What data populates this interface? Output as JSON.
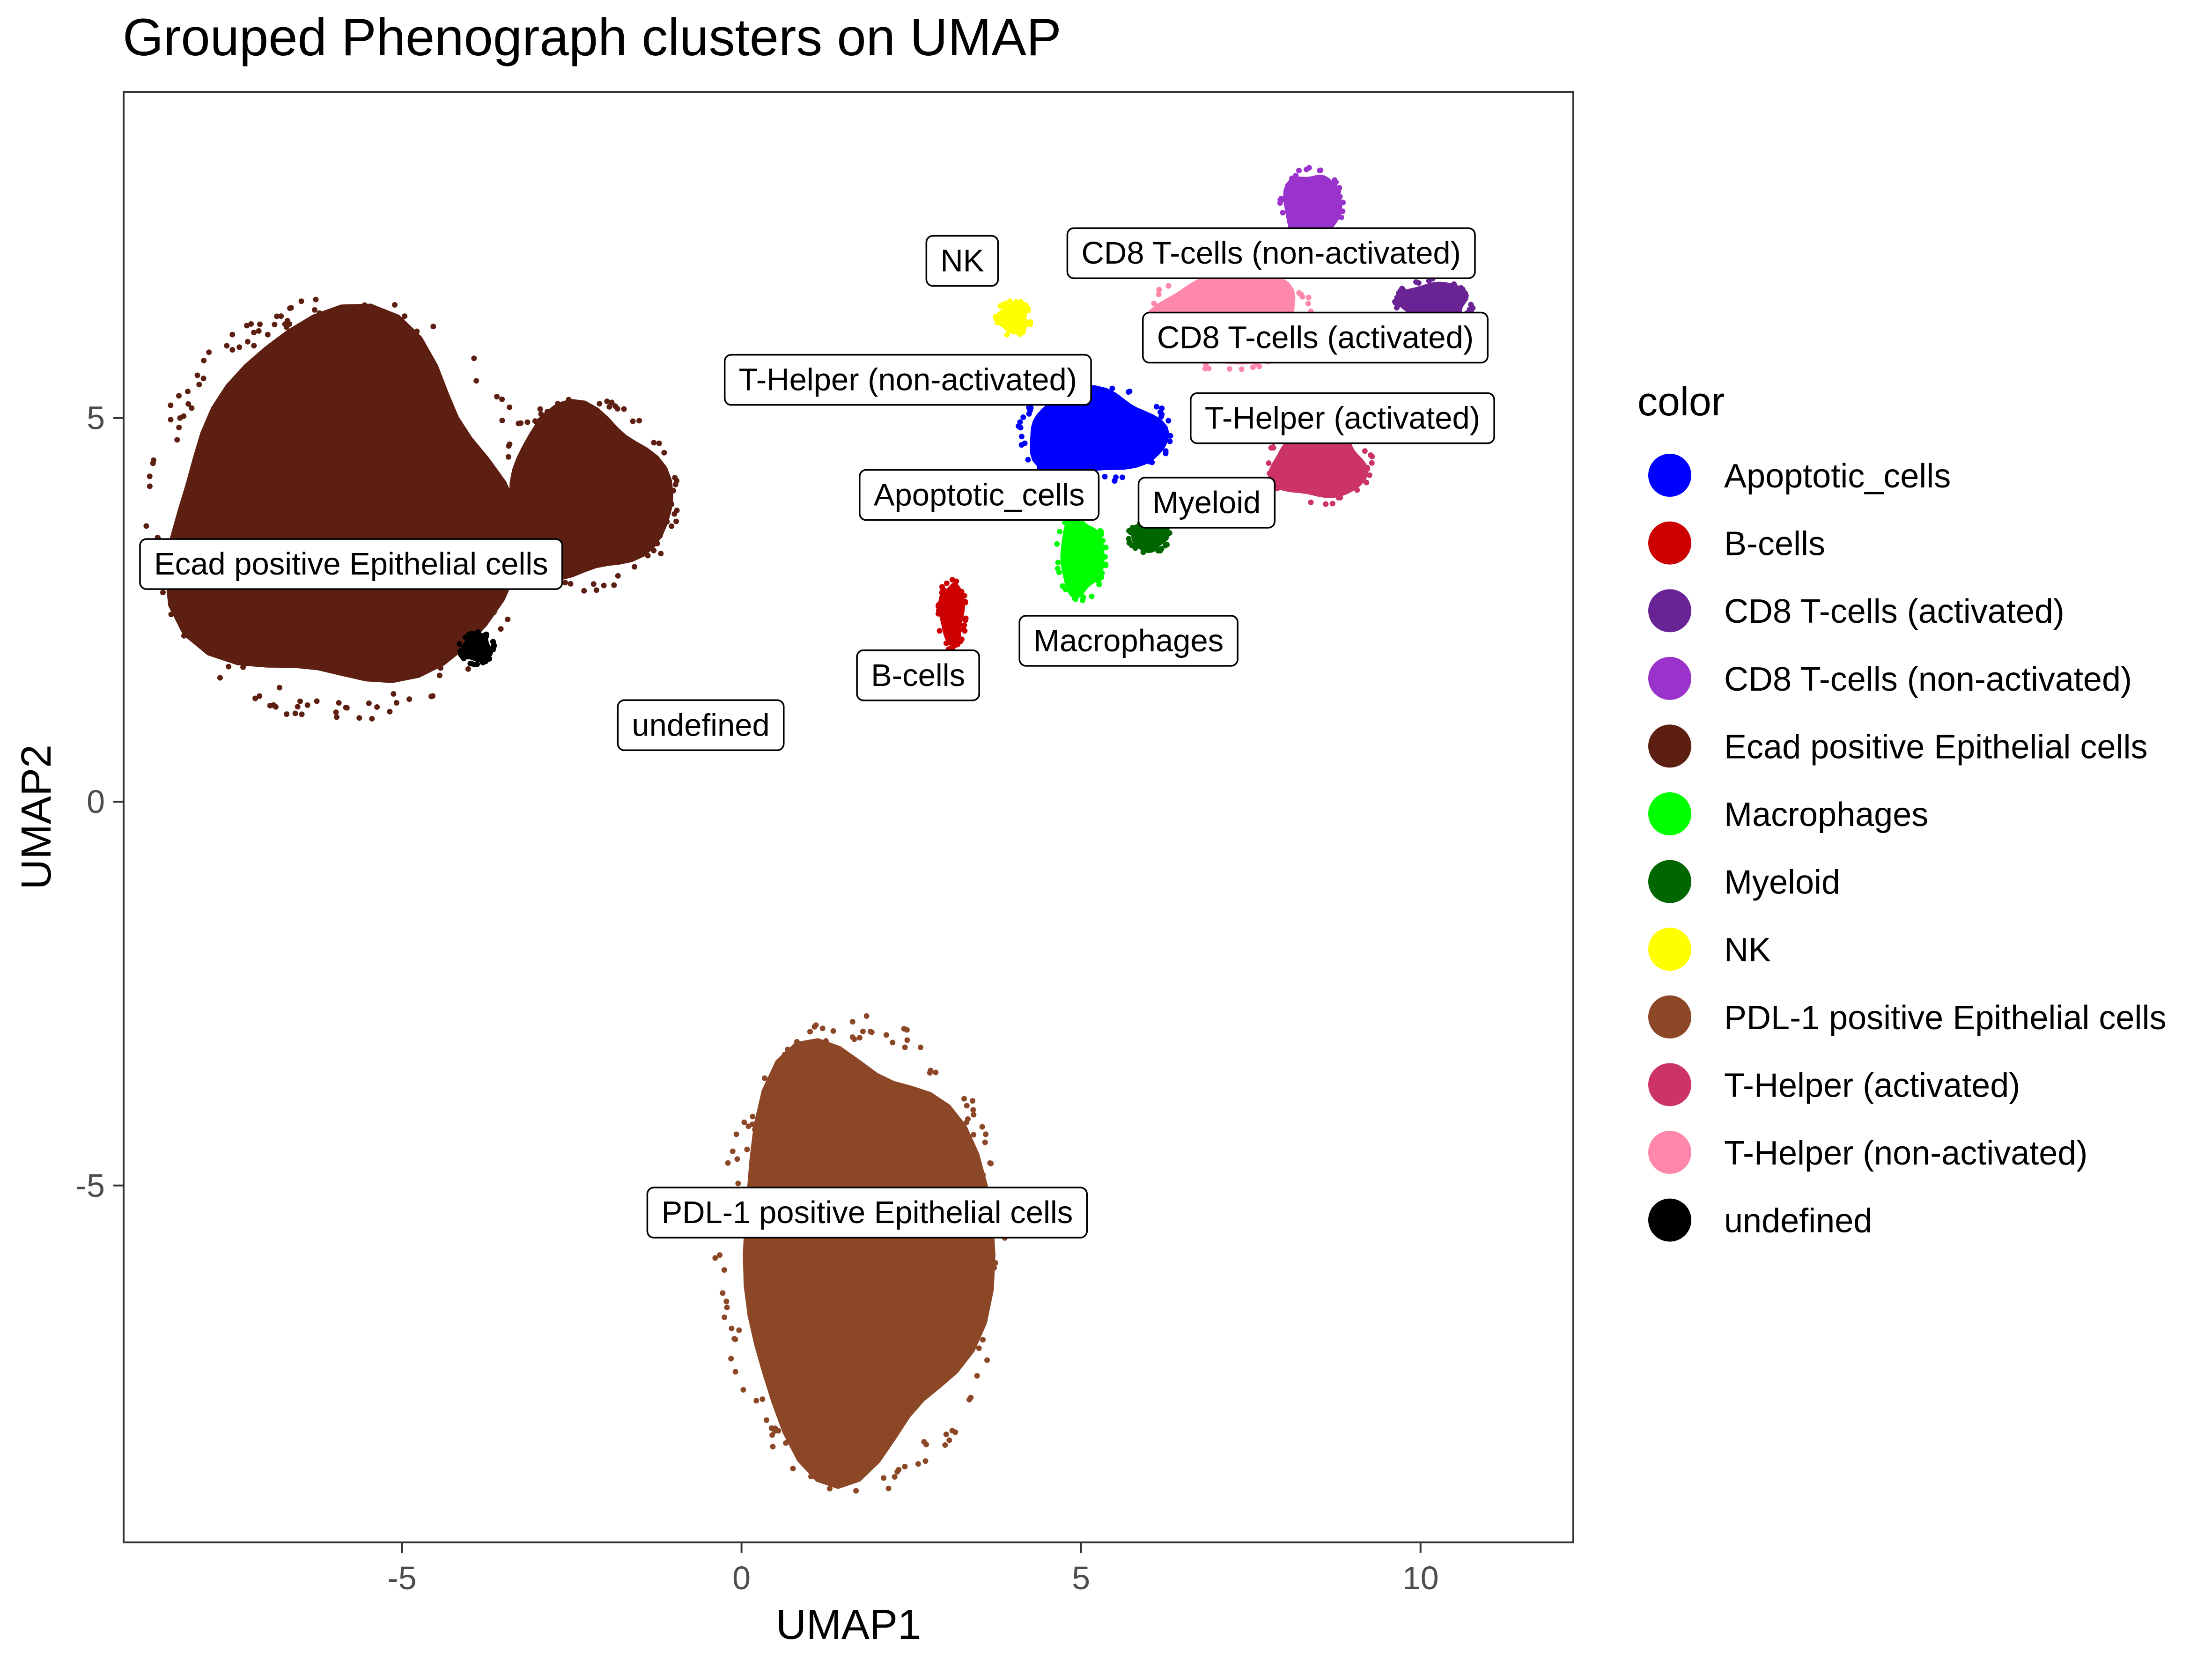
{
  "chart_data": {
    "type": "scatter",
    "title": "Grouped Phenograph clusters on UMAP",
    "xlabel": "UMAP1",
    "ylabel": "UMAP2",
    "xlim": [
      -9.1,
      12.25
    ],
    "ylim": [
      -9.65,
      9.25
    ],
    "x_ticks": [
      {
        "value": -5,
        "label": "-5"
      },
      {
        "value": 0,
        "label": "0"
      },
      {
        "value": 5,
        "label": "5"
      },
      {
        "value": 10,
        "label": "10"
      }
    ],
    "y_ticks": [
      {
        "value": -5,
        "label": "-5"
      },
      {
        "value": 0,
        "label": "0"
      },
      {
        "value": 5,
        "label": "5"
      }
    ],
    "grid": false,
    "legend": {
      "title": "color",
      "placement": "right"
    },
    "series": [
      {
        "name": "Apoptotic_cells",
        "color": "#0000FF"
      },
      {
        "name": "B-cells",
        "color": "#CC0000"
      },
      {
        "name": "CD8 T-cells (activated)",
        "color": "#6A2394"
      },
      {
        "name": "CD8 T-cells (non-activated)",
        "color": "#9933CC"
      },
      {
        "name": "Ecad positive Epithelial cells",
        "color": "#5C1F12"
      },
      {
        "name": "Macrophages",
        "color": "#00FF00"
      },
      {
        "name": "Myeloid",
        "color": "#006600"
      },
      {
        "name": "NK",
        "color": "#FFFF00"
      },
      {
        "name": "PDL-1 positive Epithelial cells",
        "color": "#8B4726"
      },
      {
        "name": "T-Helper (activated)",
        "color": "#CC3366"
      },
      {
        "name": "T-Helper (non-activated)",
        "color": "#FF88AA"
      },
      {
        "name": "undefined",
        "color": "#000000"
      }
    ],
    "cluster_regions": [
      {
        "series": 4,
        "shape": "blob",
        "center": [
          -5.9,
          3.8
        ],
        "rx": 2.7,
        "ry": 2.6
      },
      {
        "series": 4,
        "shape": "blob",
        "center": [
          -2.3,
          4.0
        ],
        "rx": 1.3,
        "ry": 1.2
      },
      {
        "series": 8,
        "shape": "blob",
        "center": [
          1.75,
          -5.9
        ],
        "rx": 2.0,
        "ry": 2.95
      },
      {
        "series": 3,
        "shape": "blob",
        "center": [
          8.4,
          7.7
        ],
        "rx": 0.45,
        "ry": 0.55
      },
      {
        "series": 2,
        "shape": "blob",
        "center": [
          10.2,
          6.5
        ],
        "rx": 0.55,
        "ry": 0.3
      },
      {
        "series": 10,
        "shape": "blob",
        "center": [
          7.2,
          6.3
        ],
        "rx": 1.2,
        "ry": 0.65
      },
      {
        "series": 9,
        "shape": "blob",
        "center": [
          8.5,
          4.4
        ],
        "rx": 0.75,
        "ry": 0.5
      },
      {
        "series": 0,
        "shape": "blob",
        "center": [
          5.2,
          4.8
        ],
        "rx": 1.1,
        "ry": 0.6
      },
      {
        "series": 5,
        "shape": "blob",
        "center": [
          5.0,
          3.2
        ],
        "rx": 0.35,
        "ry": 0.55
      },
      {
        "series": 6,
        "shape": "blob",
        "center": [
          6.0,
          3.45
        ],
        "rx": 0.3,
        "ry": 0.2
      },
      {
        "series": 1,
        "shape": "blob",
        "center": [
          3.1,
          2.45
        ],
        "rx": 0.2,
        "ry": 0.45
      },
      {
        "series": 7,
        "shape": "blob",
        "center": [
          4.0,
          6.3
        ],
        "rx": 0.25,
        "ry": 0.22
      },
      {
        "series": 11,
        "shape": "blob",
        "center": [
          -3.9,
          2.0
        ],
        "rx": 0.25,
        "ry": 0.2
      }
    ],
    "annotations": [
      {
        "text": "NK",
        "x": 3.25,
        "y": 7.05
      },
      {
        "text": "CD8 T-cells (non-activated)",
        "x": 7.8,
        "y": 7.15
      },
      {
        "text": "CD8 T-cells (activated)",
        "x": 8.45,
        "y": 6.05
      },
      {
        "text": "T-Helper (non-activated)",
        "x": 2.45,
        "y": 5.5
      },
      {
        "text": "T-Helper (activated)",
        "x": 8.85,
        "y": 5.0
      },
      {
        "text": "Apoptotic_cells",
        "x": 3.5,
        "y": 4.0
      },
      {
        "text": "Myeloid",
        "x": 6.85,
        "y": 3.9
      },
      {
        "text": "Ecad positive Epithelial cells",
        "x": -5.75,
        "y": 3.1
      },
      {
        "text": "Macrophages",
        "x": 5.7,
        "y": 2.1
      },
      {
        "text": "B-cells",
        "x": 2.6,
        "y": 1.65
      },
      {
        "text": "undefined",
        "x": -0.6,
        "y": 1.0
      },
      {
        "text": "PDL-1 positive Epithelial cells",
        "x": 1.85,
        "y": -5.35
      }
    ]
  }
}
